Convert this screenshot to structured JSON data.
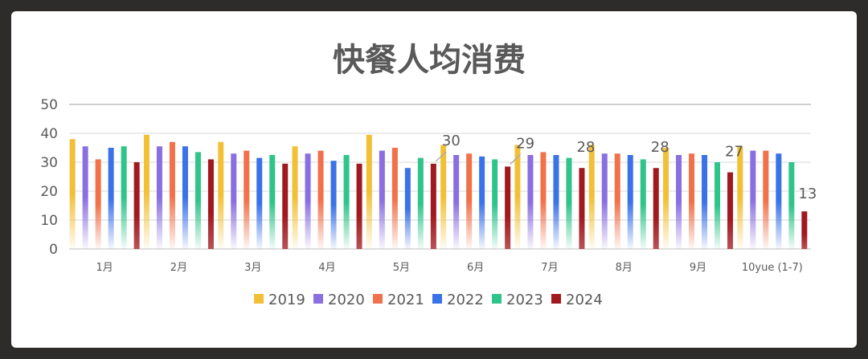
{
  "chart_data": {
    "type": "bar",
    "title": "快餐人均消费",
    "categories": [
      "1月",
      "2月",
      "3月",
      "4月",
      "5月",
      "6月",
      "7月",
      "8月",
      "9月",
      "10yue (1-7)"
    ],
    "series": [
      {
        "name": "2019",
        "color": "#f2c037",
        "values": [
          38,
          39.5,
          37,
          35.5,
          39.5,
          36,
          36,
          36,
          35,
          35.5
        ]
      },
      {
        "name": "2020",
        "color": "#8a6fe0",
        "values": [
          35.5,
          35.5,
          33,
          33,
          34,
          32.5,
          32.5,
          33,
          32.5,
          34
        ]
      },
      {
        "name": "2021",
        "color": "#f0714a",
        "values": [
          31,
          37,
          34,
          34,
          35,
          33,
          33.5,
          33,
          33,
          34
        ]
      },
      {
        "name": "2022",
        "color": "#3a72e8",
        "values": [
          35,
          35.5,
          31.5,
          30.5,
          28,
          32,
          32.5,
          32.5,
          32.5,
          33
        ]
      },
      {
        "name": "2023",
        "color": "#2fc48a",
        "values": [
          35.5,
          33.5,
          32.5,
          32.5,
          31.5,
          31,
          31.5,
          31,
          30,
          30
        ]
      },
      {
        "name": "2024",
        "color": "#a0191e",
        "values": [
          30,
          31,
          29.5,
          29.5,
          29.5,
          28.5,
          28,
          28,
          26.5,
          13
        ]
      }
    ],
    "data_labels": [
      {
        "category_index": 4,
        "text": "30"
      },
      {
        "category_index": 5,
        "text": "29"
      },
      {
        "category_index": 6,
        "text": "28"
      },
      {
        "category_index": 7,
        "text": "28"
      },
      {
        "category_index": 8,
        "text": "27"
      },
      {
        "category_index": 9,
        "text": "13"
      }
    ],
    "ylim": [
      0,
      50
    ],
    "yticks": [
      0,
      10,
      20,
      30,
      40,
      50
    ],
    "grid": true,
    "legend_position": "bottom"
  }
}
